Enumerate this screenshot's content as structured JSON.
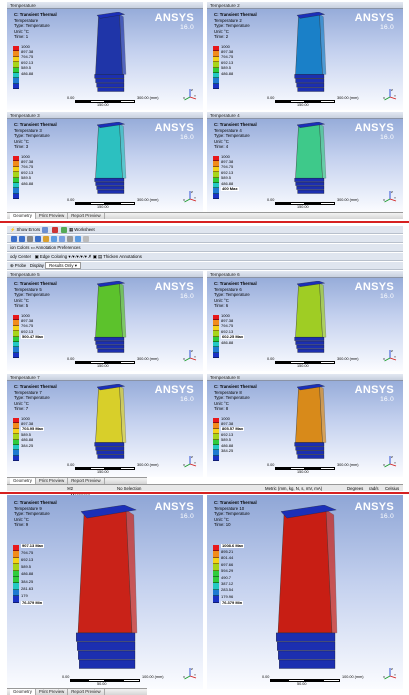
{
  "brand": {
    "name": "ANSYS",
    "version": "16.0"
  },
  "panels": [
    {
      "tab": "Temperature",
      "info": [
        "C: Transient Thermal",
        "Temperature",
        "Type: Temperature",
        "Unit: °C",
        "Time: 1"
      ],
      "legend": [
        "1000",
        "897.38",
        "794.75",
        "692.13",
        "589.5",
        "486.88"
      ],
      "bold_label": "",
      "color": "#1f35a8"
    },
    {
      "tab": "Temperature 2",
      "info": [
        "C: Transient Thermal",
        "Temperature 2",
        "Type: Temperature",
        "Unit: °C",
        "Time: 2"
      ],
      "legend": [
        "1000",
        "897.38",
        "794.75",
        "692.13",
        "589.5",
        "486.88"
      ],
      "bold_label": "",
      "color": "#1a80c8"
    },
    {
      "tab": "Temperature 3",
      "info": [
        "C: Transient Thermal",
        "Temperature 3",
        "Type: Temperature",
        "Unit: °C",
        "Time: 3"
      ],
      "legend": [
        "1000",
        "897.38",
        "794.75",
        "692.13",
        "589.5",
        "486.88"
      ],
      "bold_label": "",
      "color": "#2cc0c0"
    },
    {
      "tab": "Temperature 4",
      "info": [
        "C: Transient Thermal",
        "Temperature 4",
        "Type: Temperature",
        "Unit: °C",
        "Time: 4"
      ],
      "legend": [
        "1000",
        "897.38",
        "794.75",
        "692.13",
        "589.5",
        "486.88"
      ],
      "bold_label": "400 Max",
      "color": "#3ec98a"
    },
    {
      "tab": "Temperature 5",
      "info": [
        "C: Transient Thermal",
        "Temperature 5",
        "Type: Temperature",
        "Unit: °C",
        "Time: 5"
      ],
      "legend": [
        "1000",
        "897.38",
        "794.75",
        "692.13"
      ],
      "bold_label": "500.47 Max",
      "color": "#5cc22c"
    },
    {
      "tab": "Temperature 6",
      "info": [
        "C: Transient Thermal",
        "Temperature 6",
        "Type: Temperature",
        "Unit: °C",
        "Time: 6"
      ],
      "legend": [
        "1000",
        "897.38",
        "794.75",
        "692.13"
      ],
      "bold_label": "602.25 Max",
      "color": "#9fcd24",
      "extra_label": "486.88"
    },
    {
      "tab": "Temperature 7",
      "info": [
        "C: Transient Thermal",
        "Temperature 7",
        "Type: Temperature",
        "Unit: °C",
        "Time: 7"
      ],
      "legend": [
        "1000",
        "897.38"
      ],
      "bold_label": "703.95 Max",
      "color": "#d8cf2a",
      "extra_labels": [
        "589.5",
        "486.88",
        "384.25"
      ]
    },
    {
      "tab": "Temperature 8",
      "info": [
        "C: Transient Thermal",
        "Temperature 8",
        "Type: Temperature",
        "Unit: °C",
        "Time: 8"
      ],
      "legend": [
        "1000",
        "897.38"
      ],
      "bold_label": "805.57 Max",
      "color": "#d88a1a",
      "extra_labels": [
        "692.13",
        "589.5",
        "486.88",
        "384.25"
      ]
    },
    {
      "tab": "",
      "info": [
        "C: Transient Thermal",
        "Temperature 9",
        "Type: Temperature",
        "Unit: °C",
        "Time: 9"
      ],
      "legend_top": "",
      "bold_label": "907.13 Max",
      "legend": [
        "794.75",
        "692.13",
        "589.5",
        "486.88",
        "384.25",
        "281.63",
        "179"
      ],
      "min_label": "76.379 Min",
      "color": "#c92218"
    },
    {
      "tab": "",
      "info": [
        "C: Transient Thermal",
        "Temperature 10",
        "Type: Temperature",
        "Unit: °C",
        "Time: 10"
      ],
      "bold_label": "1008.6 Max",
      "legend": [
        "895.21",
        "801.44",
        "697.66",
        "594.29",
        "490.7",
        "387.12",
        "283.54",
        "179.96"
      ],
      "min_label": "76.379 Min",
      "color": "#c81e14"
    }
  ],
  "scale": {
    "start": "0.00",
    "end": "300.00 (mm)",
    "mid": "150.00",
    "end2": "100.00 (mm)",
    "mid2": "50.00"
  },
  "tabs": {
    "geometry": "Geometry",
    "print_preview": "Print Preview",
    "report_preview": "Report Preview"
  },
  "toolbar": {
    "row1": [
      "Show Errors",
      "Worksheet"
    ],
    "row3_left": "ion Colors",
    "annotation": "Annotation Preferences",
    "edge_coloring": "Edge Coloring",
    "thicken": "Thicken Annotations",
    "row4_left": "Probe",
    "display_label": "Display",
    "display_value": "Results Only",
    "body_center": "ody Center"
  },
  "status": {
    "messages": "2 Messages",
    "selection": "No Selection",
    "units": "Metric (mm, kg, N, s, mV, mA)",
    "degrees": "Degrees",
    "rad": "rad/s",
    "celsius": "Celsius"
  },
  "legend_colors": [
    "#e8171b",
    "#f28b1b",
    "#f3d31a",
    "#a7d41b",
    "#2ecb3c",
    "#23c8c4",
    "#1f7bd1",
    "#1b31c3"
  ]
}
